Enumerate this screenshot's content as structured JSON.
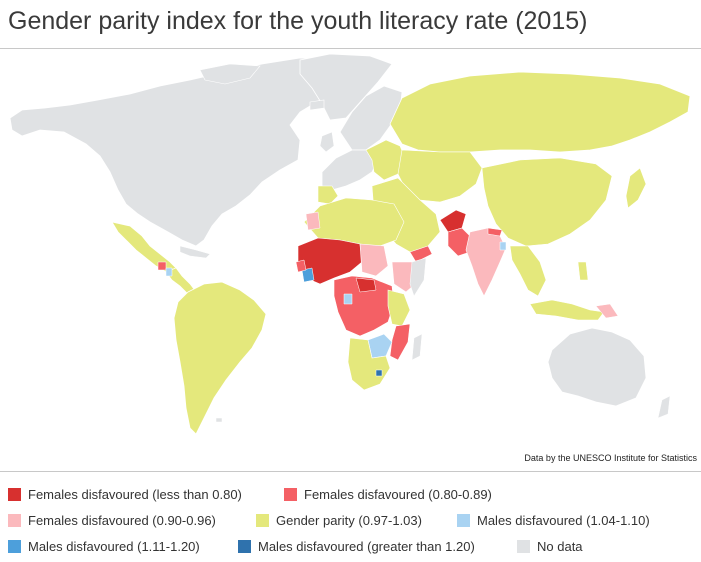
{
  "title": "Gender parity index for the youth literacy rate (2015)",
  "source": "Data by the UNESCO Institute for Statistics",
  "colors": {
    "ocean": "#ffffff",
    "no_data": "#e0e2e4",
    "border": "#ffffff"
  },
  "legend": [
    {
      "label": "Females disfavoured (less than 0.80)",
      "color": "#d7302f"
    },
    {
      "label": "Females disfavoured (0.80-0.89)",
      "color": "#f46065"
    },
    {
      "label": "Females disfavoured (0.90-0.96)",
      "color": "#fbb9bd"
    },
    {
      "label": "Gender parity (0.97-1.03)",
      "color": "#e4e87c"
    },
    {
      "label": "Males disfavoured (1.04-1.10)",
      "color": "#a9d3f2"
    },
    {
      "label": "Males disfavoured (1.11-1.20)",
      "color": "#4d9fdb"
    },
    {
      "label": "Males disfavoured (greater than 1.20)",
      "color": "#2f72ad"
    },
    {
      "label": "No data",
      "color": "#e0e2e4"
    }
  ]
}
